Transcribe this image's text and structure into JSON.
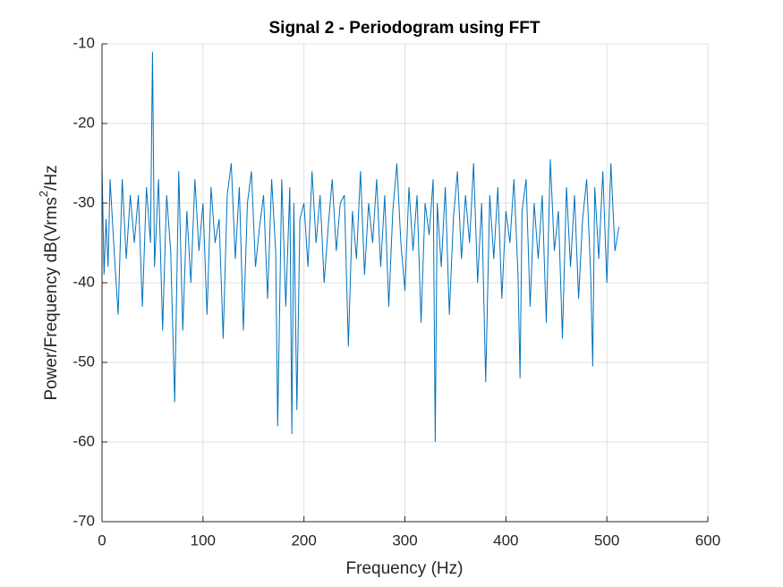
{
  "chart_data": {
    "type": "line",
    "title": "Signal 2 - Periodogram using FFT",
    "x_label": "Frequency (Hz)",
    "y_label": {
      "text": "Power/Frequency dB(Vrms",
      "superscript": "2",
      "suffix": "/Hz"
    },
    "xlim": [
      0,
      600
    ],
    "xticks": [
      0,
      100,
      200,
      300,
      400,
      500,
      600
    ],
    "ylim": [
      -70,
      -10
    ],
    "yticks": [
      -70,
      -60,
      -50,
      -40,
      -30,
      -20,
      -10
    ],
    "grid": true,
    "series": [
      {
        "color": "#0072bd",
        "x": [
          0,
          2,
          4,
          6,
          8,
          12,
          16,
          20,
          24,
          28,
          32,
          36,
          40,
          44,
          48,
          50,
          52,
          56,
          60,
          64,
          68,
          72,
          76,
          80,
          84,
          88,
          92,
          96,
          100,
          104,
          108,
          112,
          116,
          120,
          124,
          128,
          132,
          136,
          140,
          144,
          148,
          152,
          156,
          160,
          164,
          168,
          172,
          174,
          178,
          182,
          186,
          188,
          190,
          193,
          196,
          200,
          204,
          208,
          212,
          216,
          220,
          224,
          228,
          232,
          236,
          240,
          244,
          248,
          252,
          256,
          260,
          264,
          268,
          272,
          276,
          280,
          284,
          288,
          292,
          296,
          300,
          304,
          308,
          312,
          316,
          320,
          324,
          328,
          330,
          332,
          336,
          340,
          344,
          348,
          352,
          356,
          360,
          364,
          368,
          372,
          376,
          380,
          384,
          388,
          392,
          396,
          400,
          404,
          408,
          412,
          414,
          416,
          420,
          424,
          428,
          432,
          436,
          440,
          444,
          448,
          452,
          456,
          460,
          464,
          468,
          472,
          476,
          480,
          484,
          486,
          488,
          492,
          496,
          500,
          504,
          508,
          512
        ],
        "values": [
          -25,
          -39,
          -32,
          -38,
          -27,
          -36,
          -44,
          -27,
          -37,
          -29,
          -35,
          -29,
          -43,
          -28,
          -35,
          -11,
          -38,
          -27,
          -46,
          -29,
          -36,
          -55,
          -26,
          -46,
          -31,
          -40,
          -27,
          -36,
          -30,
          -44,
          -28,
          -35,
          -32,
          -47,
          -29,
          -25,
          -37,
          -28,
          -46,
          -30,
          -26,
          -38,
          -33,
          -29,
          -42,
          -27,
          -36,
          -58,
          -27,
          -43,
          -28,
          -59,
          -30,
          -56,
          -32,
          -30,
          -38,
          -26,
          -35,
          -29,
          -40,
          -33,
          -27,
          -36,
          -30,
          -29,
          -48,
          -31,
          -37,
          -26,
          -39,
          -30,
          -35,
          -27,
          -38,
          -29,
          -43,
          -31,
          -25,
          -35,
          -41,
          -28,
          -36,
          -29,
          -45,
          -30,
          -34,
          -27,
          -60,
          -30,
          -38,
          -28,
          -44,
          -32,
          -26,
          -37,
          -29,
          -35,
          -25,
          -40,
          -30,
          -52.5,
          -29,
          -37,
          -28,
          -42,
          -31,
          -35,
          -27,
          -39,
          -52,
          -31,
          -27,
          -43,
          -30,
          -37,
          -29,
          -45,
          -24.5,
          -36,
          -31,
          -47,
          -28,
          -38,
          -29,
          -42,
          -32,
          -27,
          -39,
          -50.5,
          -28,
          -37,
          -26,
          -40,
          -25,
          -36,
          -33
        ]
      }
    ]
  }
}
